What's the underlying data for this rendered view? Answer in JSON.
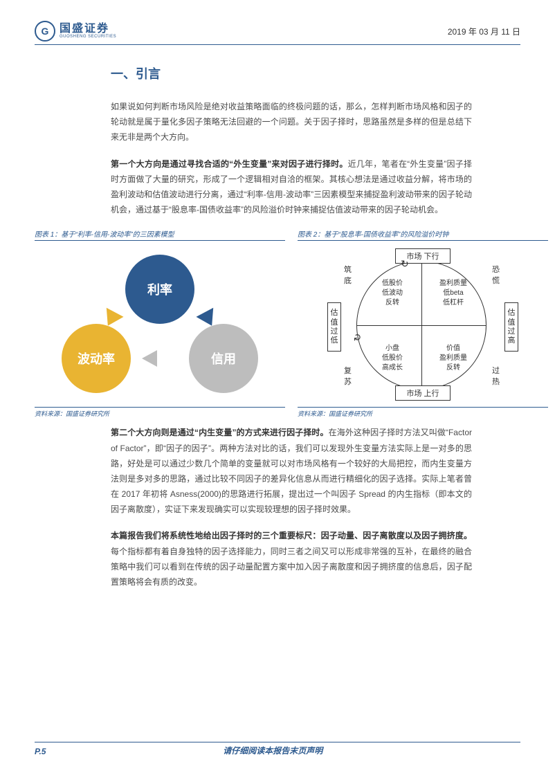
{
  "header": {
    "logo_cn": "国盛证券",
    "logo_en": "GUOSHENG SECURITIES",
    "logo_mark": "G",
    "date": "2019 年 03 月 11 日"
  },
  "section": {
    "title": "一、引言",
    "p1": "如果说如何判断市场风险是绝对收益策略面临的终极问题的话，那么，怎样判断市场风格和因子的轮动就是属于量化多因子策略无法回避的一个问题。关于因子择时，思路虽然是多样的但是总结下来无非是两个大方向。",
    "p2_bold": "第一个大方向是通过寻找合适的“外生变量”来对因子进行择时。",
    "p2_rest": "近几年，笔者在“外生变量”因子择时方面做了大量的研究，形成了一个逻辑相对自洽的框架。其核心想法是通过收益分解，将市场的盈利波动和估值波动进行分离，通过“利率-信用-波动率”三因素模型来捕捉盈利波动带来的因子轮动机会，通过基于“股息率-国债收益率”的风险溢价时钟来捕捉估值波动带来的因子轮动机会。",
    "p3_bold": "第二个大方向则是通过“内生变量”的方式来进行因子择时。",
    "p3_rest": "在海外这种因子择时方法又叫做“Factor of Factor”，即“因子的因子”。两种方法对比的话，我们可以发现外生变量方法实际上是一对多的思路，好处是可以通过少数几个简单的变量就可以对市场风格有一个较好的大局把控，而内生变量方法则是多对多的思路，通过比较不同因子的差异化信息从而进行精细化的因子选择。实际上笔者曾在 2017 年初将 Asness(2000)的思路进行拓展，提出过一个叫因子 Spread 的内生指标（即本文的因子离散度），实证下来发现确实可以实现较理想的因子择时效果。",
    "p4_bold": "本篇报告我们将系统性地给出因子择时的三个重要标尺：因子动量、因子离散度以及因子拥挤度。",
    "p4_rest": "每个指标都有着自身独特的因子选择能力，同时三者之间又可以形成非常强的互补，在最终的融合策略中我们可以看到在传统的因子动量配置方案中加入因子离散度和因子拥挤度的信息后，因子配置策略将会有质的改变。"
  },
  "fig1": {
    "title": "图表 1：基于“利率-信用-波动率”的三因素模型",
    "source": "资料来源：国盛证券研究所",
    "nodes": {
      "top": "利率",
      "bl": "波动率",
      "br": "信用"
    },
    "colors": {
      "top": "#2d5a8f",
      "bl": "#e9b432",
      "br": "#bdbdbd"
    }
  },
  "fig2": {
    "title": "图表 2：基于“股息率-国债收益率”的风险溢价时钟",
    "source": "资料来源：国盛证券研究所",
    "labels": {
      "top": "市场 下行",
      "bottom": "市场 上行",
      "left": "估值过低",
      "right": "估值过高"
    },
    "corners": {
      "tl": "筑底",
      "tr": "恐慌",
      "bl": "复苏",
      "br": "过热"
    },
    "quadrants": {
      "q1": "低股价\n低波动\n反转",
      "q2": "盈利质量\n低beta\n低杠杆",
      "q3": "小盘\n低股价\n高成长",
      "q4": "价值\n盈利质量\n反转"
    }
  },
  "footer": {
    "page": "P.5",
    "disclaimer": "请仔细阅读本报告末页声明"
  }
}
